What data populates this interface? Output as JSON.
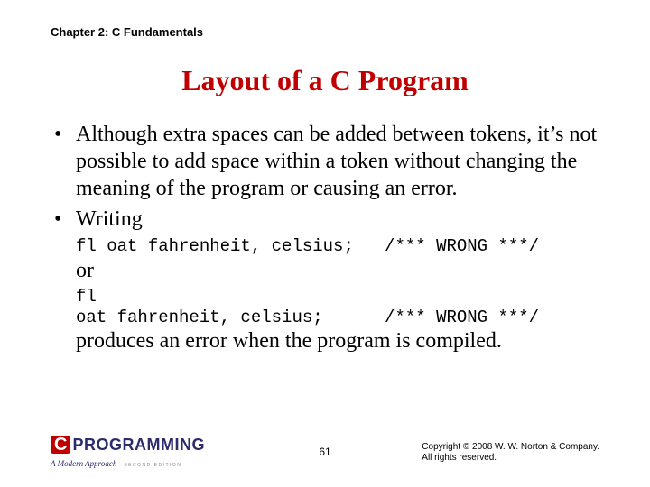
{
  "header": {
    "chapter": "Chapter 2: C Fundamentals"
  },
  "title": "Layout of a C Program",
  "body": {
    "bullet1": "Although extra spaces can be added between tokens, it’s not possible to add space within a token without changing the meaning of the program or causing an error.",
    "bullet2": "Writing",
    "code1": "fl oat fahrenheit, celsius;   /*** WRONG ***/",
    "or_text": "or",
    "code2": "fl\noat fahrenheit, celsius;      /*** WRONG ***/",
    "closing": "produces an error when the program is compiled."
  },
  "logo": {
    "c": "C",
    "prog": "PROGRAMMING",
    "subtitle": "A Modern Approach",
    "edition": "SECOND EDITION"
  },
  "footer": {
    "page": "61",
    "copyright1": "Copyright © 2008 W. W. Norton & Company.",
    "copyright2": "All rights reserved."
  },
  "colors": {
    "title": "#c00000",
    "logo_bg": "#c00000",
    "logo_text": "#2c2c6c",
    "background": "#ffffff"
  },
  "fontsizes": {
    "chapter": 13,
    "title": 32,
    "body": 24,
    "code": 19,
    "footer": 10,
    "pagenum": 12
  }
}
